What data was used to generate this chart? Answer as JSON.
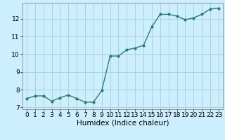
{
  "x": [
    0,
    1,
    2,
    3,
    4,
    5,
    6,
    7,
    8,
    9,
    10,
    11,
    12,
    13,
    14,
    15,
    16,
    17,
    18,
    19,
    20,
    21,
    22,
    23
  ],
  "y": [
    7.5,
    7.65,
    7.65,
    7.35,
    7.55,
    7.7,
    7.5,
    7.3,
    7.3,
    7.95,
    9.9,
    9.9,
    10.25,
    10.35,
    10.5,
    11.55,
    12.25,
    12.25,
    12.15,
    11.95,
    12.05,
    12.25,
    12.55,
    12.6
  ],
  "line_color": "#2d7d6e",
  "marker": "o",
  "markersize": 2.0,
  "linewidth": 1.0,
  "xlabel": "Humidex (Indice chaleur)",
  "xlabel_fontsize": 7.5,
  "bg_color": "#cceeff",
  "grid_color": "#aad4d4",
  "ylim": [
    6.9,
    12.9
  ],
  "xlim": [
    -0.5,
    23.5
  ],
  "yticks": [
    7,
    8,
    9,
    10,
    11,
    12
  ],
  "xticks": [
    0,
    1,
    2,
    3,
    4,
    5,
    6,
    7,
    8,
    9,
    10,
    11,
    12,
    13,
    14,
    15,
    16,
    17,
    18,
    19,
    20,
    21,
    22,
    23
  ],
  "tick_fontsize": 6.5
}
